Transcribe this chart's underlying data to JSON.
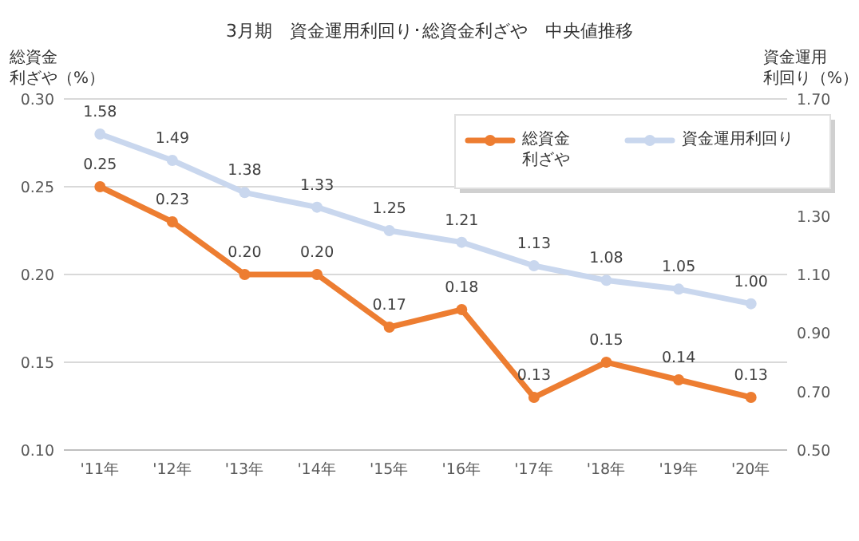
{
  "chart_data": {
    "type": "line",
    "title": "3月期　資金運用利回り･総資金利ざや　中央値推移",
    "ylabel": "総資金利ざや（%）",
    "y2label": "資金運用利回り（%）",
    "categories": [
      "'11年",
      "'12年",
      "'13年",
      "'14年",
      "'15年",
      "'16年",
      "'17年",
      "'18年",
      "'19年",
      "'20年"
    ],
    "series": [
      {
        "name": "総資金利ざや",
        "color": "#ed7d31",
        "values": [
          0.25,
          0.23,
          0.2,
          0.2,
          0.17,
          0.18,
          0.13,
          0.15,
          0.14,
          0.13
        ],
        "value_labels": [
          "0.25",
          "0.23",
          "0.20",
          "0.20",
          "0.17",
          "0.18",
          "0.13",
          "0.15",
          "0.14",
          "0.13"
        ]
      },
      {
        "name": "資金運用利回り",
        "color": "#c9d7ee",
        "axis": "y2",
        "values": [
          1.58,
          1.49,
          1.38,
          1.33,
          1.25,
          1.21,
          1.13,
          1.08,
          1.05,
          1.0
        ],
        "value_labels": [
          "1.58",
          "1.49",
          "1.38",
          "1.33",
          "1.25",
          "1.21",
          "1.13",
          "1.08",
          "1.05",
          "1.00"
        ]
      }
    ],
    "ylim": [
      0.1,
      0.3
    ],
    "yticks": [
      {
        "value": 0.1,
        "label": "0.10"
      },
      {
        "value": 0.15,
        "label": "0.15"
      },
      {
        "value": 0.2,
        "label": "0.20"
      },
      {
        "value": 0.25,
        "label": "0.25"
      },
      {
        "value": 0.3,
        "label": "0.30"
      }
    ],
    "y2lim": [
      0.5,
      1.7
    ],
    "y2ticks": [
      {
        "value": 0.5,
        "label": "0.50"
      },
      {
        "value": 0.7,
        "label": "0.70"
      },
      {
        "value": 0.9,
        "label": "0.90"
      },
      {
        "value": 1.1,
        "label": "1.10"
      },
      {
        "value": 1.3,
        "label": "1.30"
      },
      {
        "value": 1.7,
        "label": "1.70"
      }
    ],
    "grid": "y",
    "legend": "top right",
    "marker": "circle",
    "line_style": "solid"
  }
}
